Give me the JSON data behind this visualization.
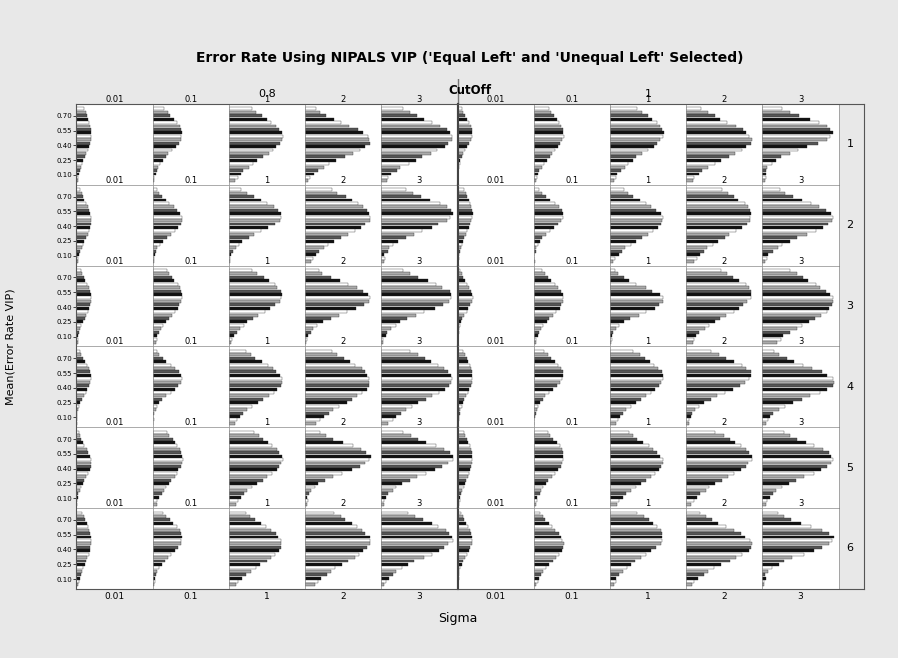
{
  "title": "Error Rate Using NIPALS VIP ('Equal Left' and 'Unequal Left' Selected)",
  "ylabel": "Mean(Error Rate VIP)",
  "xlabel": "Sigma",
  "cutoff_label": "CutOff",
  "cutoff_values": [
    "0.8",
    "1"
  ],
  "sigma_values": [
    "0.01",
    "0.1",
    "1",
    "2",
    "3"
  ],
  "row_labels": [
    "1",
    "2",
    "3",
    "4",
    "5",
    "6"
  ],
  "ytick_positions": [
    0.1,
    0.25,
    0.4,
    0.55,
    0.7
  ],
  "ytick_labels": [
    "0.10",
    "0.25",
    "0.40",
    "0.55",
    "0.70"
  ],
  "n_rows": 6,
  "n_sigma": 5,
  "n_bars": 22,
  "bg_color": "#e8e8e8",
  "panel_bg": "#ffffff",
  "header_bg": "#cccccc",
  "bar_colors": [
    "#ffffff",
    "#aaaaaa",
    "#555555",
    "#111111"
  ],
  "bar_edge": "#222222",
  "figsize": [
    8.98,
    6.58
  ]
}
